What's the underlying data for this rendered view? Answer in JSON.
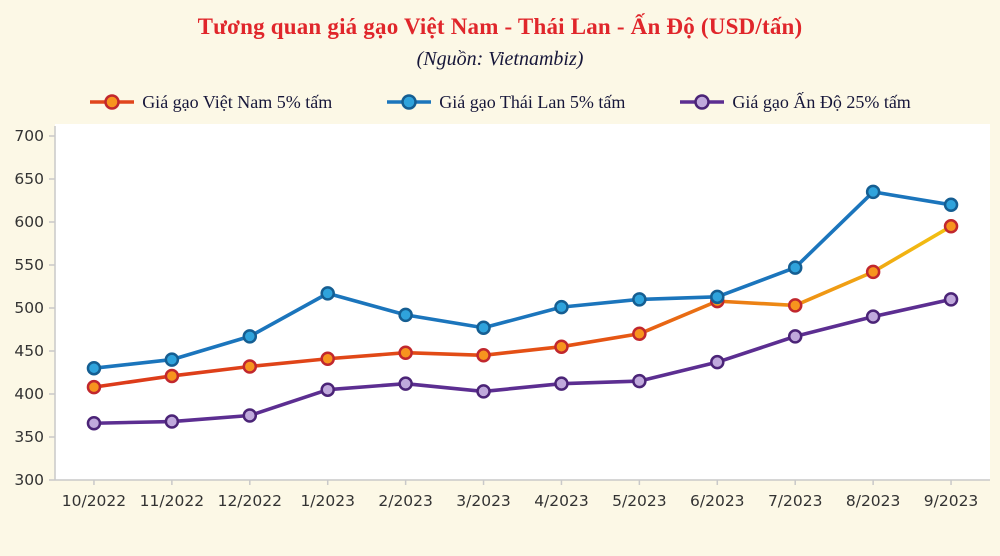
{
  "colors": {
    "page_background": "#FCF8E6",
    "plot_background": "#FFFFFF",
    "title": "#E0262B",
    "text": "#17173A",
    "axis": "#C9C9C9",
    "tick_label": "#333333"
  },
  "chart_data": {
    "type": "line",
    "title": "Tương quan giá gạo Việt Nam - Thái Lan - Ấn Độ (USD/tấn)",
    "subtitle": "(Nguồn: Vietnambiz)",
    "categories": [
      "10/2022",
      "11/2022",
      "12/2022",
      "1/2023",
      "2/2023",
      "3/2023",
      "4/2023",
      "5/2023",
      "6/2023",
      "7/2023",
      "8/2023",
      "9/2023"
    ],
    "series": [
      {
        "name": "Giá gạo Việt Nam 5% tấm",
        "color": "#E0451C",
        "marker_fill": "#F7941E",
        "marker_stroke": "#C1272D",
        "gradient_stops": [
          [
            0,
            "#DC3A1B"
          ],
          [
            0.6,
            "#E55414"
          ],
          [
            0.85,
            "#EF9714"
          ],
          [
            1,
            "#F2C211"
          ]
        ],
        "values": [
          408,
          421,
          432,
          441,
          448,
          445,
          455,
          470,
          508,
          503,
          542,
          595
        ]
      },
      {
        "name": "Giá gạo Thái Lan 5% tấm",
        "color": "#1B75BC",
        "marker_fill": "#2FA3DC",
        "marker_stroke": "#155E92",
        "values": [
          430,
          440,
          467,
          517,
          492,
          477,
          501,
          510,
          513,
          547,
          635,
          620
        ]
      },
      {
        "name": "Giá gạo Ấn Độ 25% tấm",
        "color": "#5C2E91",
        "marker_fill": "#C0A9DC",
        "marker_stroke": "#4B2477",
        "values": [
          366,
          368,
          375,
          405,
          412,
          403,
          412,
          415,
          437,
          467,
          490,
          510
        ]
      }
    ],
    "ylabel": "",
    "xlabel": "",
    "ylim": [
      300,
      700
    ],
    "ytick_step": 50,
    "grid": false,
    "legend_position": "top",
    "y_unit": "USD/tấn"
  }
}
